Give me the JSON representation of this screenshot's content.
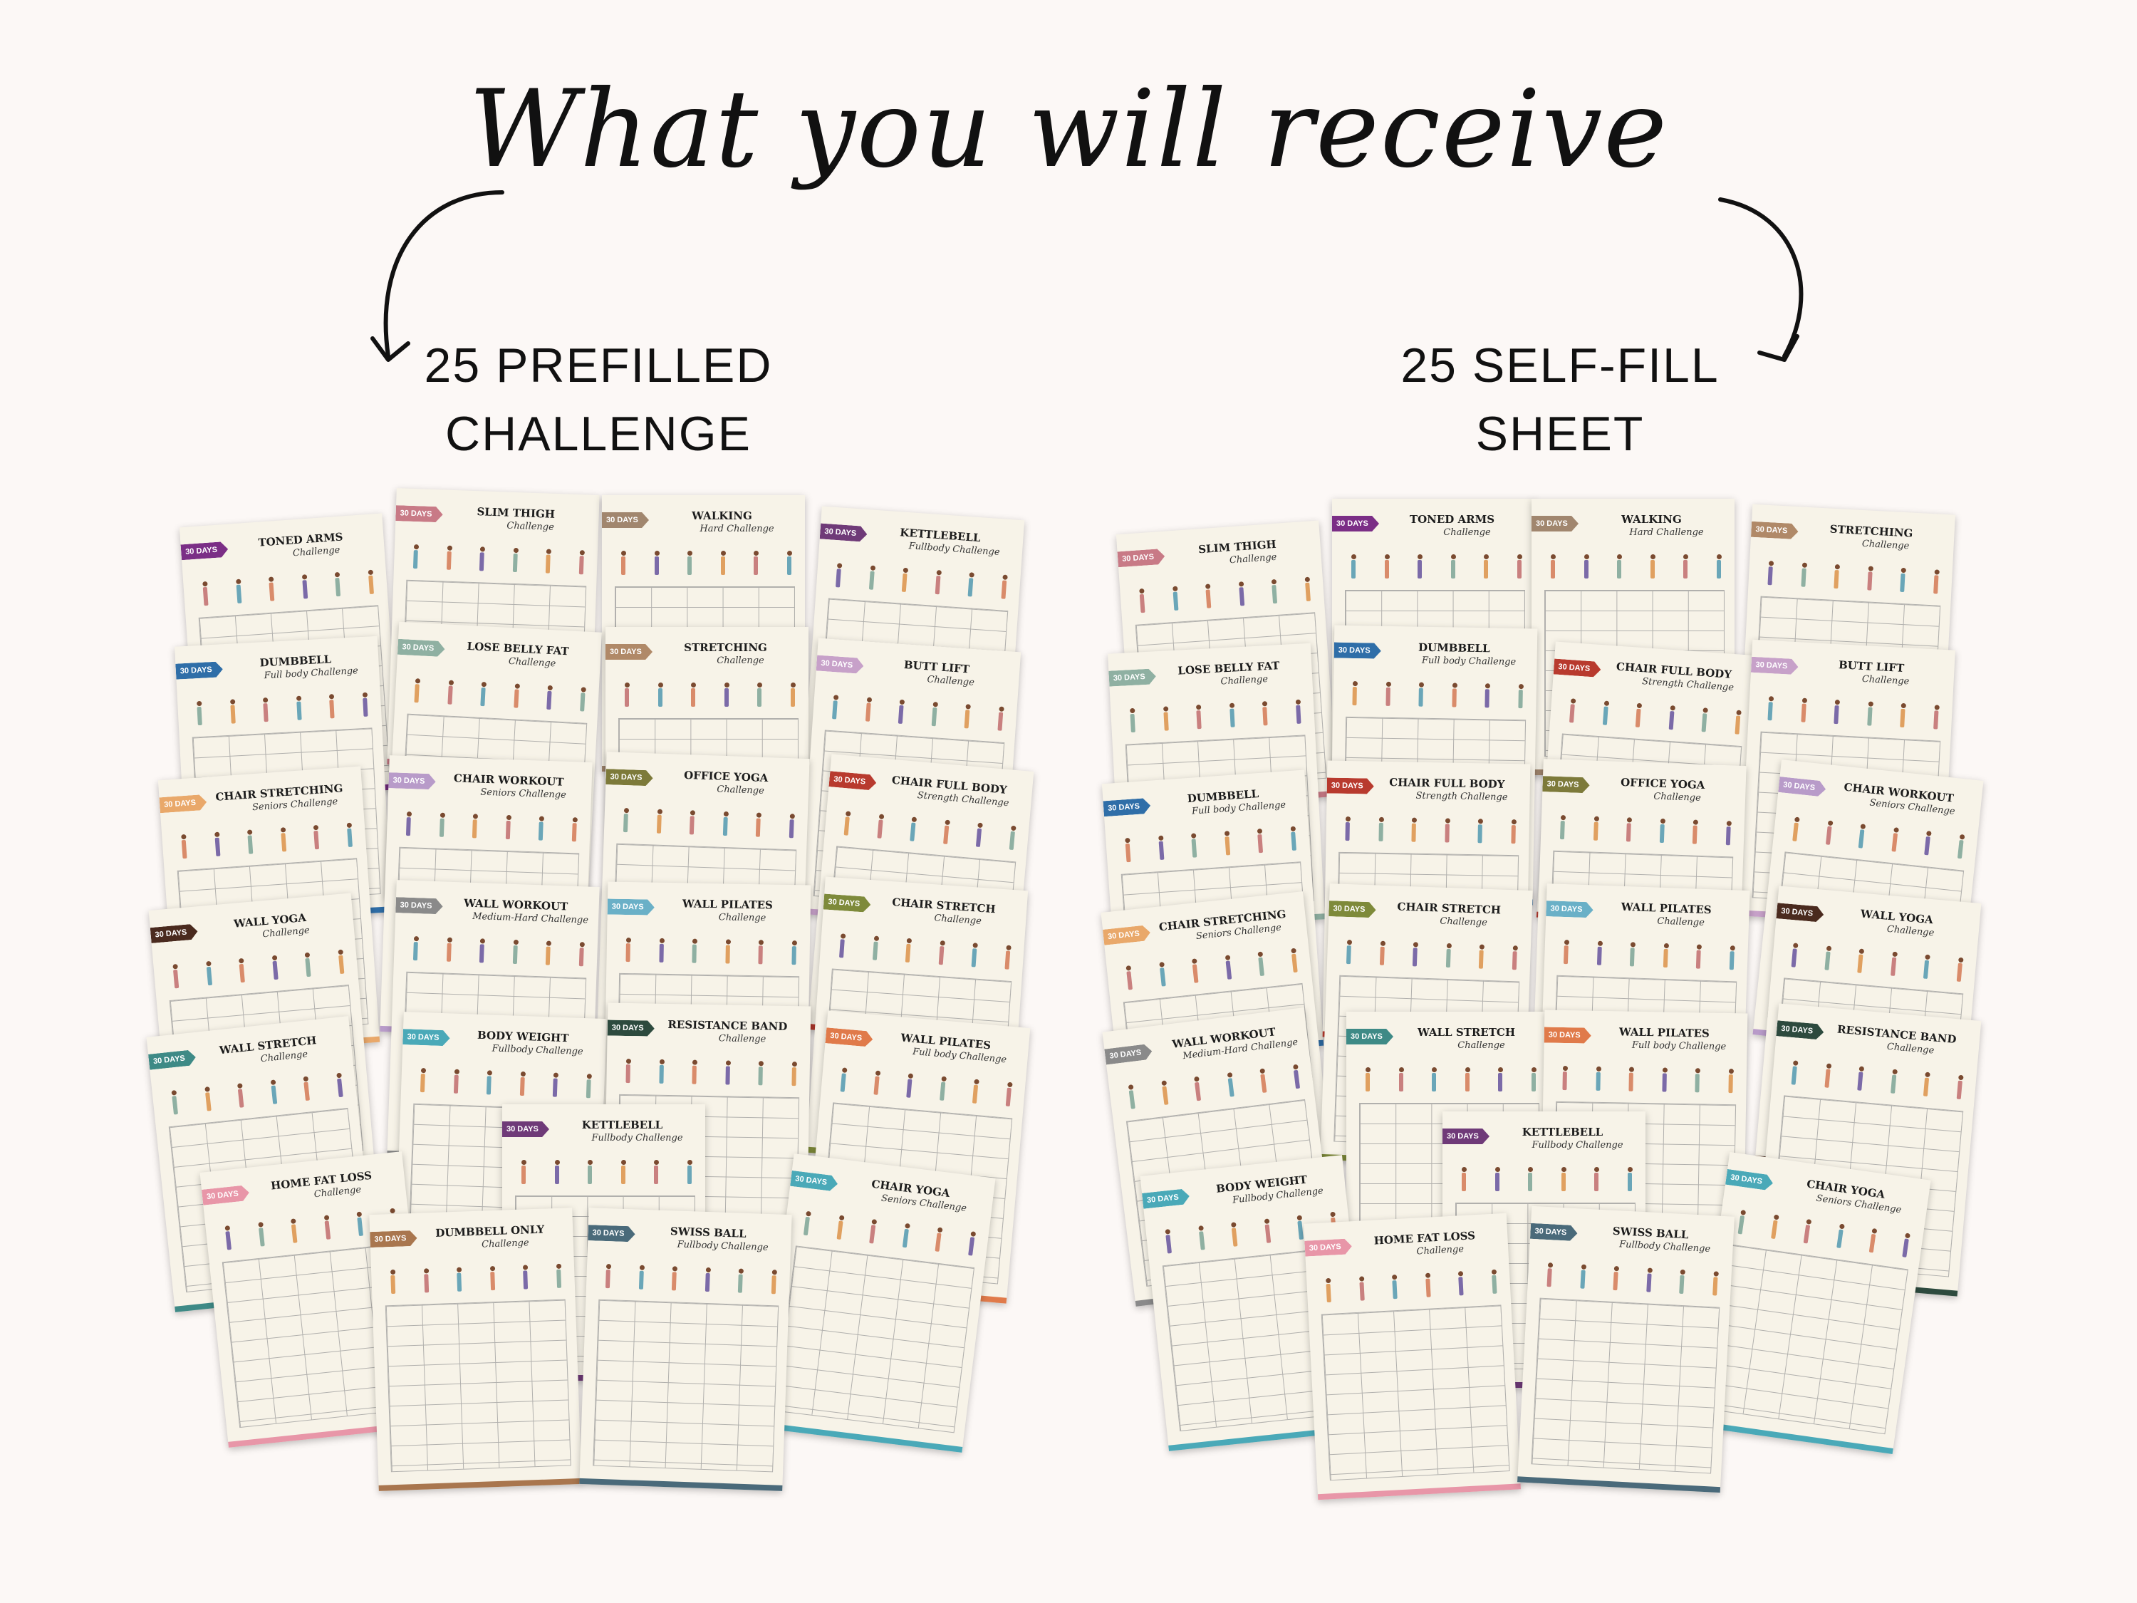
{
  "heading": "What you will receive",
  "left_label": {
    "line1": "25 PREFILLED",
    "line2": "CHALLENGE"
  },
  "right_label": {
    "line1": "25 SELF-FILL",
    "line2": "SHEET"
  },
  "tag_text": "30 DAYS",
  "left_sheets": [
    {
      "title": "TONED ARMS",
      "subtitle": "Challenge",
      "color": "#7b2e86"
    },
    {
      "title": "SLIM THIGH",
      "subtitle": "Challenge",
      "color": "#c87a86"
    },
    {
      "title": "WALKING",
      "subtitle": "Hard Challenge",
      "color": "#a1866e"
    },
    {
      "title": "KETTLEBELL",
      "subtitle": "Fullbody Challenge",
      "color": "#6f3a78"
    },
    {
      "title": "DUMBBELL",
      "subtitle": "Full body Challenge",
      "color": "#2f6ea8"
    },
    {
      "title": "LOSE BELLY FAT",
      "subtitle": "Challenge",
      "color": "#8fb0a2"
    },
    {
      "title": "STRETCHING",
      "subtitle": "Challenge",
      "color": "#b08968"
    },
    {
      "title": "BUTT LIFT",
      "subtitle": "Challenge",
      "color": "#c7a1c9"
    },
    {
      "title": "CHAIR STRETCHING",
      "subtitle": "Seniors Challenge",
      "color": "#e9a86a"
    },
    {
      "title": "CHAIR WORKOUT",
      "subtitle": "Seniors Challenge",
      "color": "#b89bc9"
    },
    {
      "title": "OFFICE YOGA",
      "subtitle": "Challenge",
      "color": "#7d7a3a"
    },
    {
      "title": "CHAIR FULL BODY",
      "subtitle": "Strength Challenge",
      "color": "#b83a2e"
    },
    {
      "title": "WALL YOGA",
      "subtitle": "Challenge",
      "color": "#4a2a1e"
    },
    {
      "title": "WALL WORKOUT",
      "subtitle": "Medium-Hard Challenge",
      "color": "#8a8a8a"
    },
    {
      "title": "WALL PILATES",
      "subtitle": "Challenge",
      "color": "#6ab0c7"
    },
    {
      "title": "CHAIR STRETCH",
      "subtitle": "Challenge",
      "color": "#7e8a3a"
    },
    {
      "title": "WALL STRETCH",
      "subtitle": "Challenge",
      "color": "#3e8a86"
    },
    {
      "title": "BODY WEIGHT",
      "subtitle": "Fullbody Challenge",
      "color": "#4aa9b8"
    },
    {
      "title": "RESISTANCE BAND",
      "subtitle": "Challenge",
      "color": "#2d4a3e"
    },
    {
      "title": "WALL PILATES",
      "subtitle": "Full body Challenge",
      "color": "#e07a4a"
    },
    {
      "title": "KETTLEBELL",
      "subtitle": "Fullbody Challenge",
      "color": "#6f3a78"
    },
    {
      "title": "HOME FAT LOSS",
      "subtitle": "Challenge",
      "color": "#e896a8"
    },
    {
      "title": "CHAIR YOGA",
      "subtitle": "Seniors Challenge",
      "color": "#4aa9b8"
    },
    {
      "title": "DUMBBELL ONLY",
      "subtitle": "Challenge",
      "color": "#a9764e"
    },
    {
      "title": "SWISS BALL",
      "subtitle": "Fullbody Challenge",
      "color": "#4a6a7a"
    }
  ],
  "right_sheets": [
    {
      "title": "SLIM THIGH",
      "subtitle": "Challenge",
      "color": "#c87a86"
    },
    {
      "title": "TONED ARMS",
      "subtitle": "Challenge",
      "color": "#7b2e86"
    },
    {
      "title": "WALKING",
      "subtitle": "Hard Challenge",
      "color": "#a1866e"
    },
    {
      "title": "STRETCHING",
      "subtitle": "Challenge",
      "color": "#b08968"
    },
    {
      "title": "LOSE BELLY FAT",
      "subtitle": "Challenge",
      "color": "#8fb0a2"
    },
    {
      "title": "DUMBBELL",
      "subtitle": "Full body Challenge",
      "color": "#2f6ea8"
    },
    {
      "title": "CHAIR FULL BODY",
      "subtitle": "Strength Challenge",
      "color": "#b83a2e"
    },
    {
      "title": "BUTT LIFT",
      "subtitle": "Challenge",
      "color": "#c7a1c9"
    },
    {
      "title": "DUMBBELL",
      "subtitle": "Full body Challenge",
      "color": "#2f6ea8"
    },
    {
      "title": "CHAIR FULL BODY",
      "subtitle": "Strength Challenge",
      "color": "#b83a2e"
    },
    {
      "title": "OFFICE YOGA",
      "subtitle": "Challenge",
      "color": "#7d7a3a"
    },
    {
      "title": "CHAIR WORKOUT",
      "subtitle": "Seniors Challenge",
      "color": "#b89bc9"
    },
    {
      "title": "CHAIR STRETCHING",
      "subtitle": "Seniors Challenge",
      "color": "#e9a86a"
    },
    {
      "title": "CHAIR STRETCH",
      "subtitle": "Challenge",
      "color": "#7e8a3a"
    },
    {
      "title": "WALL PILATES",
      "subtitle": "Challenge",
      "color": "#6ab0c7"
    },
    {
      "title": "WALL YOGA",
      "subtitle": "Challenge",
      "color": "#4a2a1e"
    },
    {
      "title": "WALL WORKOUT",
      "subtitle": "Medium-Hard Challenge",
      "color": "#8a8a8a"
    },
    {
      "title": "WALL STRETCH",
      "subtitle": "Challenge",
      "color": "#3e8a86"
    },
    {
      "title": "WALL PILATES",
      "subtitle": "Full body Challenge",
      "color": "#e07a4a"
    },
    {
      "title": "RESISTANCE BAND",
      "subtitle": "Challenge",
      "color": "#2d4a3e"
    },
    {
      "title": "KETTLEBELL",
      "subtitle": "Fullbody Challenge",
      "color": "#6f3a78"
    },
    {
      "title": "BODY WEIGHT",
      "subtitle": "Fullbody Challenge",
      "color": "#4aa9b8"
    },
    {
      "title": "CHAIR YOGA",
      "subtitle": "Seniors Challenge",
      "color": "#4aa9b8"
    },
    {
      "title": "HOME FAT LOSS",
      "subtitle": "Challenge",
      "color": "#e896a8"
    },
    {
      "title": "SWISS BALL",
      "subtitle": "Fullbody Challenge",
      "color": "#4a6a7a"
    }
  ]
}
